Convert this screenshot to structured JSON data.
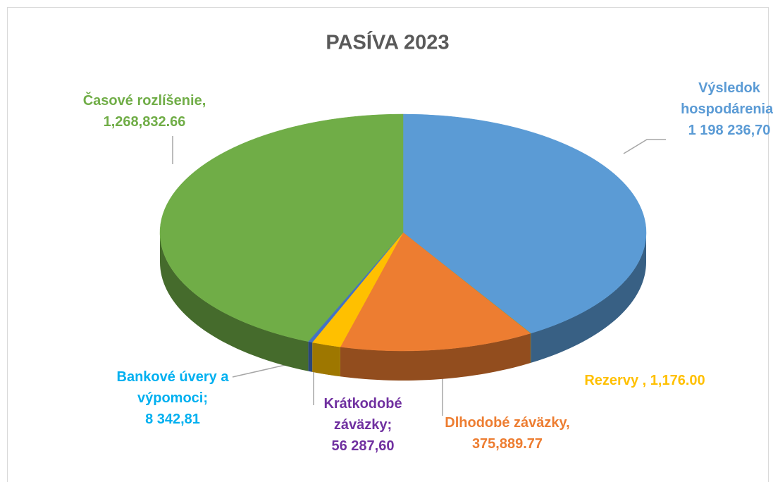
{
  "chart_data": {
    "type": "pie3d",
    "title": "PASÍVA 2023",
    "categories": [
      "Výsledok hospodárenia;",
      "Rezervy ,",
      "Dlhodobé záväzky,",
      "Krátkodobé záväzky;",
      "Bankové úvery a výpomoci;",
      "Časové rozlíšenie,"
    ],
    "values": [
      1198236.7,
      1176.0,
      375889.77,
      56287.6,
      8342.81,
      1268832.66
    ],
    "value_labels": [
      "1 198 236,70",
      "1,176.00",
      "375,889.77",
      "56 287,60",
      "8 342,81",
      "1,268,832.66"
    ],
    "colors": [
      "#5b9bd5",
      "#a5922e",
      "#ed7d31",
      "#ffc000",
      "#4472c4",
      "#70ad47"
    ],
    "label_colors": [
      "#5b9bd5",
      "#ffc000",
      "#ed7d31",
      "#7030a0",
      "#00b0f0",
      "#70ad47"
    ]
  }
}
